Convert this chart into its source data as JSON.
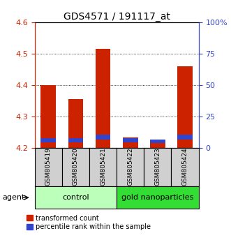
{
  "title": "GDS4571 / 191117_at",
  "samples": [
    "GSM805419",
    "GSM805420",
    "GSM805421",
    "GSM805422",
    "GSM805423",
    "GSM805424"
  ],
  "red_tops": [
    4.4,
    4.355,
    4.515,
    4.235,
    4.225,
    4.46
  ],
  "blue_bottoms": [
    4.218,
    4.218,
    4.228,
    4.218,
    4.216,
    4.228
  ],
  "blue_tops": [
    4.232,
    4.232,
    4.244,
    4.232,
    4.228,
    4.244
  ],
  "bar_bottom": 4.2,
  "ylim_left": [
    4.2,
    4.6
  ],
  "ylim_right": [
    0,
    100
  ],
  "yticks_left": [
    4.2,
    4.3,
    4.4,
    4.5,
    4.6
  ],
  "yticks_right": [
    0,
    25,
    50,
    75,
    100
  ],
  "ytick_labels_right": [
    "0",
    "25",
    "50",
    "75",
    "100%"
  ],
  "red_color": "#cc2200",
  "blue_color": "#3344cc",
  "groups": [
    {
      "label": "control",
      "indices": [
        0,
        1,
        2
      ],
      "color": "#bbffbb"
    },
    {
      "label": "gold nanoparticles",
      "indices": [
        3,
        4,
        5
      ],
      "color": "#33dd33"
    }
  ],
  "group_row_label": "agent",
  "legend_red": "transformed count",
  "legend_blue": "percentile rank within the sample",
  "bar_width": 0.55,
  "title_fontsize": 10,
  "tick_fontsize": 8,
  "sample_fontsize": 6.5,
  "group_fontsize": 8,
  "legend_fontsize": 7
}
